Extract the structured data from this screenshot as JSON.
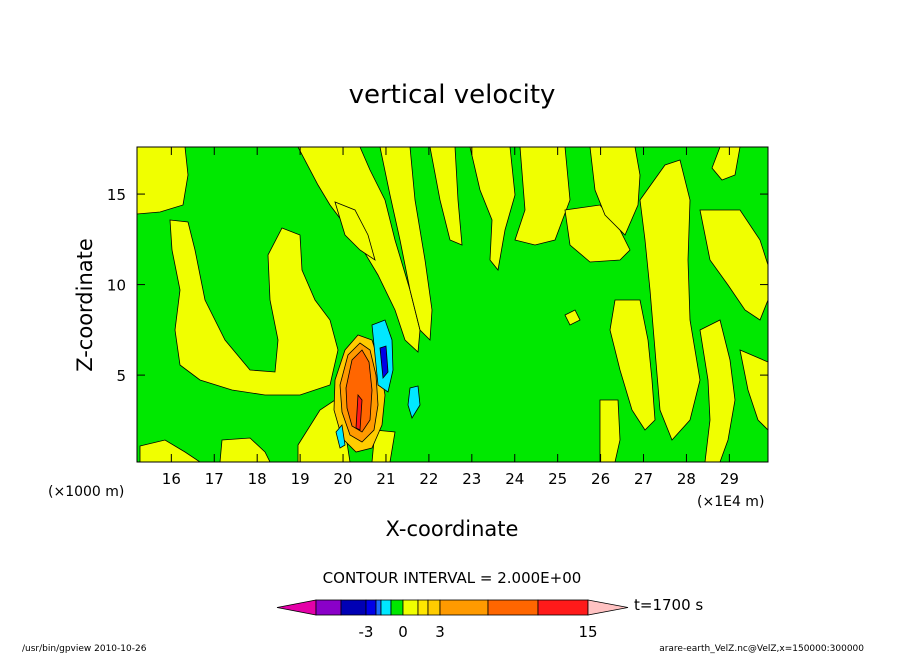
{
  "chart_data": {
    "type": "heatmap",
    "title": "vertical velocity",
    "xlabel": "X-coordinate",
    "ylabel": "Z-coordinate",
    "x_unit_label": "(×1E4 m)",
    "y_unit_label": "(×1000 m)",
    "xlim": [
      15.2,
      29.9
    ],
    "ylim": [
      0.2,
      17.6
    ],
    "x_ticks": [
      16,
      17,
      18,
      19,
      20,
      21,
      22,
      23,
      24,
      25,
      26,
      27,
      28,
      29
    ],
    "y_ticks": [
      5,
      10,
      15
    ],
    "contour_interval_label": "CONTOUR INTERVAL = 2.000E+00",
    "time_label": "t=1700 s",
    "colorbar_ticks": [
      "-3",
      "0",
      "3",
      "15"
    ],
    "colorbar_colors": [
      "#e400a8",
      "#8a00c8",
      "#0000b4",
      "#0000e8",
      "#1a6cff",
      "#00e8ff",
      "#00e800",
      "#f0ff00",
      "#ffe600",
      "#ffcc00",
      "#ff9a00",
      "#ff6600",
      "#ff1a1a",
      "#ff7a7a",
      "#ffc2c2"
    ],
    "footer_left": "/usr/bin/gpview   2010-10-26",
    "footer_right": "arare-earth_VelZ.nc@VelZ,x=150000:300000"
  }
}
